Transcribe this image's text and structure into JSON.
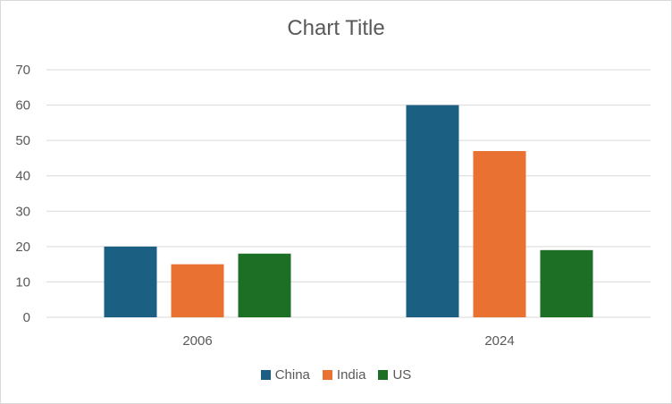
{
  "chart_data": {
    "type": "bar",
    "title": "Chart Title",
    "categories": [
      "2006",
      "2024"
    ],
    "series": [
      {
        "name": "China",
        "values": [
          20,
          60
        ],
        "color": "#1b5f82"
      },
      {
        "name": "India",
        "values": [
          15,
          47
        ],
        "color": "#e97132"
      },
      {
        "name": "US",
        "values": [
          18,
          19
        ],
        "color": "#1e6f26"
      }
    ],
    "ylim": [
      0,
      70
    ],
    "yticks": [
      0,
      10,
      20,
      30,
      40,
      50,
      60,
      70
    ],
    "grid": true,
    "legend": "bottom",
    "gridColor": "#d9d9d9",
    "textColor": "#595959"
  }
}
